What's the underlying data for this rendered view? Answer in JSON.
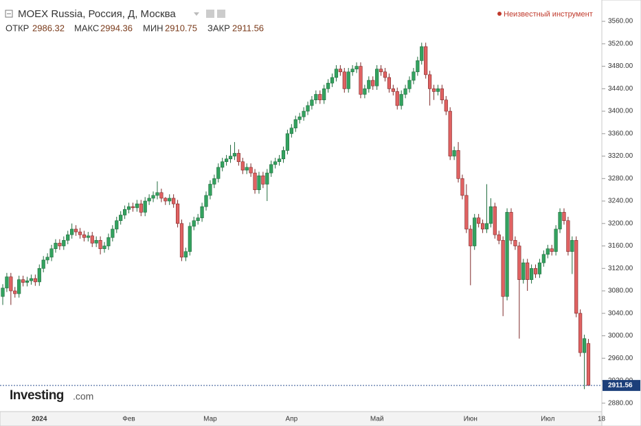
{
  "chart_data": {
    "type": "candlestick",
    "title": "MOEX Russia, Россия, Д, Москва",
    "legend_label": "Неизвестный инструмент",
    "ohlc_labels": [
      "ОТКР",
      "МАКС",
      "МИН",
      "ЗАКР"
    ],
    "brand": "Investing",
    "brand_suffix": ".com",
    "cut_tick_label": "18",
    "up_color": "#33a25f",
    "down_color": "#e06262",
    "categories": [
      null,
      null,
      null,
      null,
      null,
      null,
      null,
      null,
      null,
      "2024",
      null,
      null,
      null,
      null,
      null,
      null,
      null,
      null,
      null,
      null,
      null,
      null,
      null,
      null,
      null,
      null,
      null,
      null,
      null,
      null,
      null,
      "Фев",
      null,
      null,
      null,
      null,
      null,
      null,
      null,
      null,
      null,
      null,
      null,
      null,
      null,
      null,
      null,
      null,
      null,
      null,
      null,
      "Мар",
      null,
      null,
      null,
      null,
      null,
      null,
      null,
      null,
      null,
      null,
      null,
      null,
      null,
      null,
      null,
      null,
      null,
      null,
      null,
      "Апр",
      null,
      null,
      null,
      null,
      null,
      null,
      null,
      null,
      null,
      null,
      null,
      null,
      null,
      null,
      null,
      null,
      null,
      null,
      null,
      null,
      "Май",
      null,
      null,
      null,
      null,
      null,
      null,
      null,
      null,
      null,
      null,
      null,
      null,
      null,
      null,
      null,
      null,
      null,
      null,
      null,
      null,
      null,
      null,
      "Июн",
      null,
      null,
      null,
      null,
      null,
      null,
      null,
      null,
      null,
      null,
      null,
      null,
      null,
      null,
      null,
      null,
      null,
      null,
      "Июл",
      null,
      null,
      null,
      null,
      null,
      null,
      null,
      null,
      null,
      null
    ],
    "open": [
      3070,
      3085,
      3105,
      3080,
      3075,
      3100,
      3095,
      3098,
      3102,
      3096,
      3120,
      3135,
      3140,
      3155,
      3165,
      3160,
      3170,
      3180,
      3190,
      3185,
      3180,
      3175,
      3178,
      3165,
      3170,
      3155,
      3160,
      3175,
      3190,
      3205,
      3215,
      3225,
      3230,
      3228,
      3235,
      3220,
      3240,
      3245,
      3250,
      3255,
      3245,
      3240,
      3245,
      3235,
      3200,
      3140,
      3150,
      3195,
      3205,
      3210,
      3230,
      3250,
      3270,
      3280,
      3300,
      3310,
      3315,
      3320,
      3325,
      3310,
      3295,
      3300,
      3290,
      3260,
      3285,
      3270,
      3290,
      3305,
      3310,
      3315,
      3330,
      3360,
      3370,
      3385,
      3390,
      3400,
      3410,
      3420,
      3430,
      3420,
      3440,
      3450,
      3460,
      3475,
      3470,
      3440,
      3470,
      3475,
      3480,
      3430,
      3440,
      3455,
      3445,
      3475,
      3470,
      3460,
      3440,
      3435,
      3410,
      3430,
      3440,
      3455,
      3470,
      3490,
      3515,
      3465,
      3440,
      3435,
      3440,
      3420,
      3400,
      3320,
      3330,
      3280,
      3250,
      3190,
      3160,
      3210,
      3200,
      3190,
      3200,
      3230,
      3180,
      3170,
      3070,
      3220,
      3170,
      3160,
      3100,
      3130,
      3100,
      3120,
      3110,
      3130,
      3145,
      3155,
      3150,
      3190,
      3220,
      3205,
      3150,
      3170,
      3040,
      2970,
      2986.32
    ],
    "high": [
      3092,
      3112,
      3112,
      3087,
      3107,
      3107,
      3105,
      3109,
      3109,
      3127,
      3142,
      3147,
      3162,
      3172,
      3172,
      3177,
      3187,
      3200,
      3197,
      3192,
      3187,
      3185,
      3185,
      3177,
      3177,
      3167,
      3182,
      3197,
      3212,
      3222,
      3232,
      3237,
      3237,
      3242,
      3242,
      3247,
      3252,
      3257,
      3275,
      3262,
      3247,
      3252,
      3252,
      3242,
      3207,
      3157,
      3202,
      3212,
      3217,
      3237,
      3257,
      3277,
      3287,
      3307,
      3317,
      3322,
      3340,
      3345,
      3332,
      3317,
      3307,
      3307,
      3297,
      3292,
      3292,
      3297,
      3312,
      3317,
      3322,
      3337,
      3367,
      3377,
      3392,
      3397,
      3407,
      3417,
      3427,
      3437,
      3437,
      3447,
      3457,
      3467,
      3482,
      3482,
      3477,
      3477,
      3482,
      3487,
      3487,
      3447,
      3462,
      3462,
      3482,
      3482,
      3477,
      3467,
      3447,
      3442,
      3437,
      3447,
      3462,
      3477,
      3497,
      3522,
      3522,
      3472,
      3447,
      3447,
      3447,
      3427,
      3407,
      3337,
      3345,
      3287,
      3270,
      3197,
      3217,
      3217,
      3207,
      3270,
      3245,
      3237,
      3187,
      3177,
      3227,
      3227,
      3177,
      3167,
      3137,
      3137,
      3127,
      3127,
      3137,
      3152,
      3162,
      3162,
      3197,
      3227,
      3227,
      3212,
      3177,
      3177,
      3047,
      3002,
      2994.36
    ],
    "low": [
      3055,
      3078,
      3055,
      3068,
      3068,
      3088,
      3088,
      3091,
      3089,
      3089,
      3113,
      3128,
      3133,
      3148,
      3153,
      3153,
      3163,
      3173,
      3178,
      3173,
      3168,
      3168,
      3158,
      3158,
      3145,
      3148,
      3153,
      3168,
      3183,
      3198,
      3208,
      3218,
      3221,
      3221,
      3213,
      3213,
      3233,
      3238,
      3243,
      3238,
      3233,
      3233,
      3228,
      3193,
      3133,
      3133,
      3143,
      3188,
      3198,
      3203,
      3223,
      3243,
      3263,
      3273,
      3293,
      3303,
      3308,
      3313,
      3303,
      3288,
      3288,
      3283,
      3253,
      3253,
      3263,
      3240,
      3283,
      3298,
      3303,
      3308,
      3323,
      3353,
      3363,
      3378,
      3383,
      3393,
      3403,
      3413,
      3413,
      3413,
      3433,
      3443,
      3453,
      3463,
      3433,
      3433,
      3463,
      3468,
      3423,
      3423,
      3433,
      3438,
      3438,
      3463,
      3453,
      3433,
      3428,
      3403,
      3403,
      3423,
      3433,
      3448,
      3463,
      3483,
      3458,
      3410,
      3420,
      3428,
      3413,
      3393,
      3313,
      3313,
      3273,
      3243,
      3183,
      3090,
      3153,
      3193,
      3183,
      3183,
      3193,
      3173,
      3163,
      3035,
      3063,
      3163,
      3153,
      2995,
      3093,
      3080,
      3093,
      3103,
      3103,
      3123,
      3138,
      3143,
      3143,
      3183,
      3198,
      3143,
      3110,
      3033,
      2963,
      2905,
      2910.75
    ],
    "close": [
      3085,
      3105,
      3080,
      3075,
      3100,
      3095,
      3098,
      3102,
      3096,
      3120,
      3135,
      3140,
      3155,
      3165,
      3160,
      3170,
      3180,
      3190,
      3185,
      3180,
      3175,
      3178,
      3165,
      3170,
      3155,
      3160,
      3175,
      3190,
      3205,
      3215,
      3225,
      3230,
      3228,
      3235,
      3220,
      3240,
      3245,
      3250,
      3255,
      3245,
      3240,
      3245,
      3235,
      3200,
      3140,
      3150,
      3195,
      3205,
      3210,
      3230,
      3250,
      3270,
      3280,
      3300,
      3310,
      3315,
      3320,
      3325,
      3310,
      3295,
      3300,
      3290,
      3260,
      3285,
      3270,
      3290,
      3305,
      3310,
      3315,
      3330,
      3360,
      3370,
      3385,
      3390,
      3400,
      3410,
      3420,
      3430,
      3420,
      3440,
      3450,
      3460,
      3475,
      3470,
      3440,
      3470,
      3475,
      3480,
      3430,
      3440,
      3455,
      3445,
      3475,
      3470,
      3460,
      3440,
      3435,
      3410,
      3430,
      3440,
      3455,
      3470,
      3490,
      3515,
      3465,
      3440,
      3435,
      3440,
      3420,
      3400,
      3320,
      3330,
      3280,
      3250,
      3190,
      3160,
      3210,
      3200,
      3190,
      3200,
      3230,
      3180,
      3170,
      3070,
      3220,
      3170,
      3160,
      3100,
      3130,
      3100,
      3120,
      3110,
      3130,
      3145,
      3155,
      3150,
      3190,
      3220,
      3205,
      3150,
      3170,
      3040,
      2970,
      2995,
      2911.56
    ],
    "ylim": [
      2865,
      3598
    ],
    "yticks": [
      {
        "value": 2880,
        "label": "2880.00"
      },
      {
        "value": 2920,
        "label": "2920.00"
      },
      {
        "value": 2960,
        "label": "2960.00"
      },
      {
        "value": 3000,
        "label": "3000.00"
      },
      {
        "value": 3040,
        "label": "3040.00"
      },
      {
        "value": 3080,
        "label": "3080.00"
      },
      {
        "value": 3120,
        "label": "3120.00"
      },
      {
        "value": 3160,
        "label": "3160.00"
      },
      {
        "value": 3200,
        "label": "3200.00"
      },
      {
        "value": 3240,
        "label": "3240.00"
      },
      {
        "value": 3280,
        "label": "3280.00"
      },
      {
        "value": 3320,
        "label": "3320.00"
      },
      {
        "value": 3360,
        "label": "3360.00"
      },
      {
        "value": 3400,
        "label": "3400.00"
      },
      {
        "value": 3440,
        "label": "3440.00"
      },
      {
        "value": 3480,
        "label": "3480.00"
      },
      {
        "value": 3520,
        "label": "3520.00"
      },
      {
        "value": 3560,
        "label": "3560.00"
      }
    ]
  }
}
